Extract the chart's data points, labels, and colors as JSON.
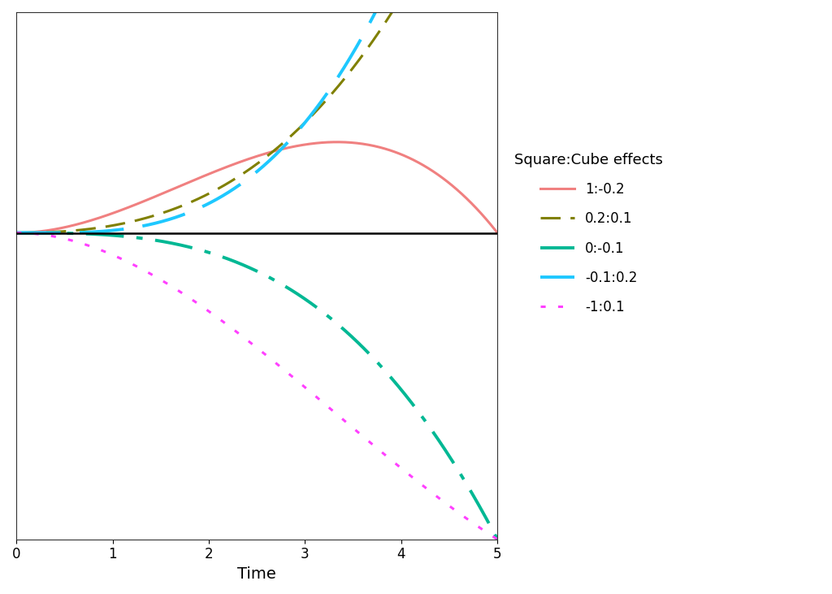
{
  "title": "Square:Cube effects",
  "xlabel": "Time",
  "ylabel": "",
  "t_min": 0,
  "t_max": 5,
  "ylim": [
    -12.5,
    9.0
  ],
  "series": [
    {
      "label": "1:-0.2",
      "sq": 1.0,
      "cu": -0.2,
      "color": "#F08080",
      "linewidth": 2.2,
      "dashes": null
    },
    {
      "label": "0.2:0.1",
      "sq": 0.2,
      "cu": 0.1,
      "color": "#808000",
      "linewidth": 2.2,
      "dashes": [
        8,
        4
      ]
    },
    {
      "label": "0:-0.1",
      "sq": 0.0,
      "cu": -0.1,
      "color": "#00B894",
      "linewidth": 2.8,
      "dashes": [
        12,
        4,
        2,
        4
      ]
    },
    {
      "label": "-0.1:0.2",
      "sq": -0.1,
      "cu": 0.2,
      "color": "#1EC8FF",
      "linewidth": 2.8,
      "dashes": [
        14,
        6
      ]
    },
    {
      "label": "-1:0.1",
      "sq": -1.0,
      "cu": 0.1,
      "color": "#FF40FF",
      "linewidth": 2.2,
      "dashes": [
        2,
        5
      ]
    }
  ],
  "hline_y": 0,
  "hline_color": "#000000",
  "hline_linewidth": 1.8,
  "background_color": "#FFFFFF",
  "figsize": [
    10.24,
    7.31
  ],
  "dpi": 100,
  "xticks": [
    0,
    1,
    2,
    3,
    4,
    5
  ],
  "spine_linewidth": 0.8
}
